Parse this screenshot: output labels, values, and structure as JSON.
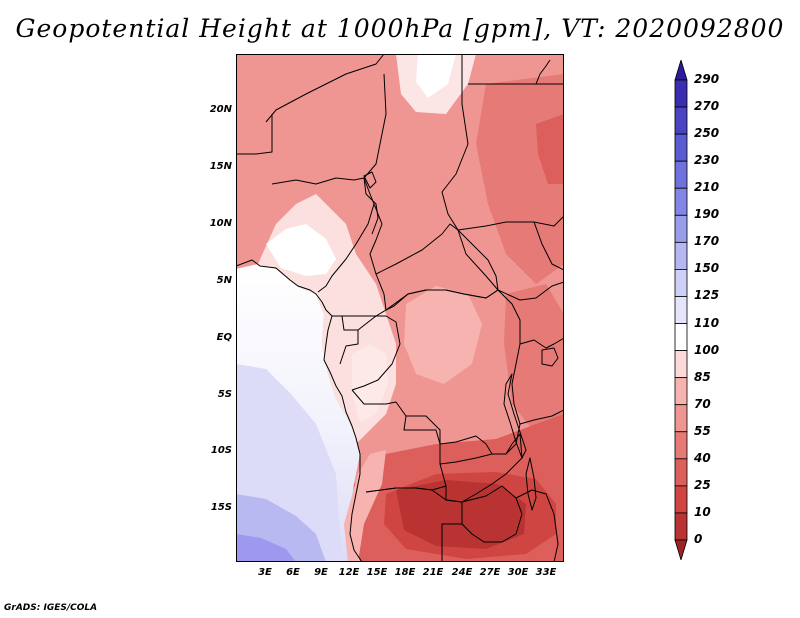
{
  "title": "Geopotential Height at 1000hPa [gpm], VT: 2020092800",
  "latitude_labels": [
    "20N",
    "15N",
    "10N",
    "5N",
    "EQ",
    "5S",
    "10S",
    "15S"
  ],
  "longitude_labels": [
    "3E",
    "6E",
    "9E",
    "12E",
    "15E",
    "18E",
    "21E",
    "24E",
    "27E",
    "30E",
    "33E"
  ],
  "colorbar": {
    "labels": [
      "290",
      "270",
      "250",
      "230",
      "210",
      "190",
      "170",
      "150",
      "125",
      "110",
      "100",
      "85",
      "70",
      "55",
      "40",
      "25",
      "10",
      "0"
    ],
    "colors": [
      "#2b1a9c",
      "#3a2db0",
      "#4a44c4",
      "#5b5bd2",
      "#6f72dc",
      "#8386e4",
      "#9a9cec",
      "#b5b6f2",
      "#cfd0f8",
      "#e4e5fb",
      "#ffffff",
      "#fcdada",
      "#f6b3b0",
      "#ef9693",
      "#e57a77",
      "#dd5f5c",
      "#cf4542",
      "#b83331",
      "#9c2523"
    ]
  },
  "credit": "GrADS: IGES/COLA"
}
